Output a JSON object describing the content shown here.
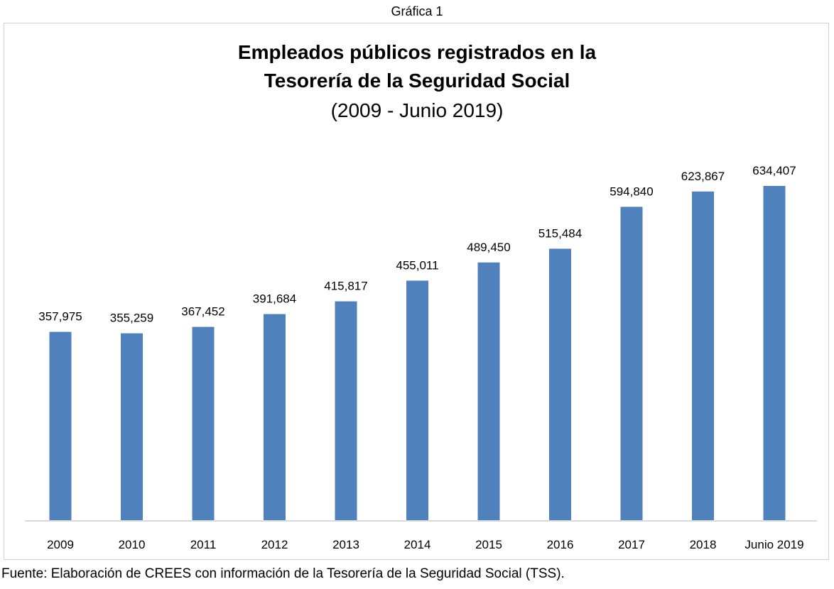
{
  "caption": "Gráfica 1",
  "footer": "Fuente: Elaboración de CREES con información de la Tesorería de la Seguridad Social (TSS).",
  "chart_data": {
    "type": "bar",
    "title_lines": [
      "Empleados públicos registrados en la",
      "Tesorería de la Seguridad Social"
    ],
    "subtitle": "(2009 - Junio 2019)",
    "categories": [
      "2009",
      "2010",
      "2011",
      "2012",
      "2013",
      "2014",
      "2015",
      "2016",
      "2017",
      "2018",
      "Junio 2019"
    ],
    "values": [
      357975,
      355259,
      367452,
      391684,
      415817,
      455011,
      489450,
      515484,
      594840,
      623867,
      634407
    ],
    "value_labels": [
      "357,975",
      "355,259",
      "367,452",
      "391,684",
      "415,817",
      "455,011",
      "489,450",
      "515,484",
      "594,840",
      "623,867",
      "634,407"
    ],
    "ylim": [
      0,
      634407
    ],
    "grid": false,
    "legend": "none",
    "bar_color": "#4f81bd",
    "axis_color": "#d9d9d9"
  }
}
